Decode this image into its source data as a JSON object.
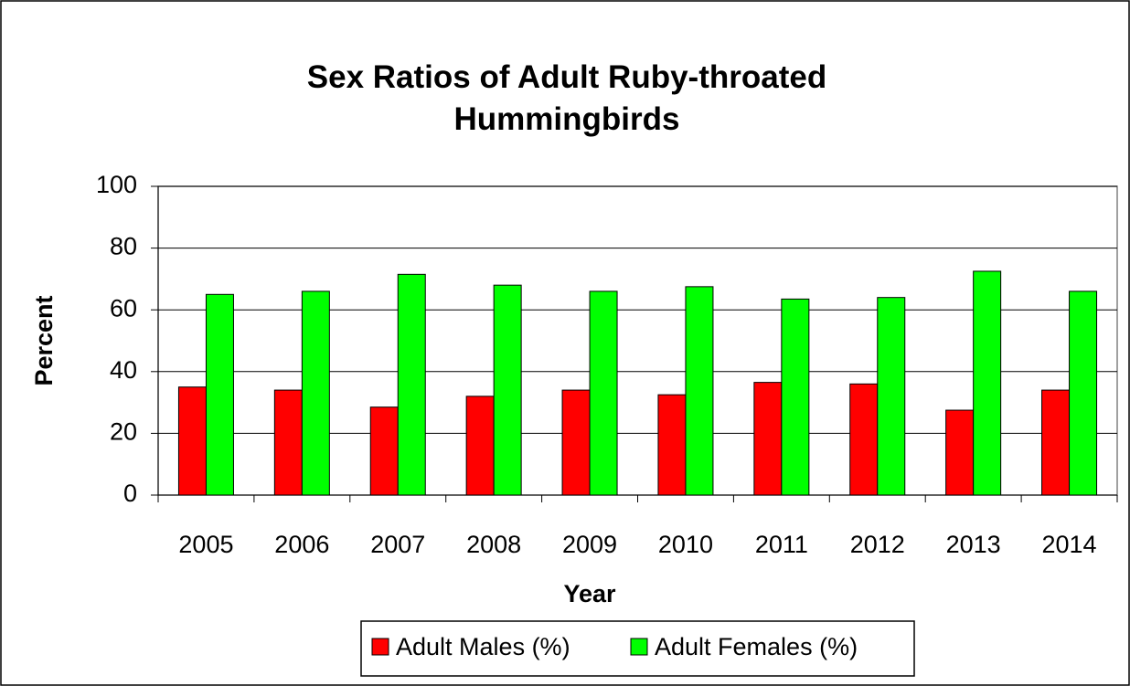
{
  "chart_data": {
    "type": "bar",
    "title": "Sex Ratios of Adult Ruby-throated Hummingbirds",
    "x_label": "Year",
    "y_label": "Percent",
    "categories": [
      "2005",
      "2006",
      "2007",
      "2008",
      "2009",
      "2010",
      "2011",
      "2012",
      "2013",
      "2014"
    ],
    "series": [
      {
        "name": "Adult Males (%)",
        "color": "#ff0000",
        "values": [
          35,
          34,
          28.5,
          32,
          34,
          32.5,
          36.5,
          36,
          27.5,
          34
        ]
      },
      {
        "name": "Adult Females (%)",
        "color": "#00ff00",
        "values": [
          65,
          66,
          71.5,
          68,
          66,
          67.5,
          63.5,
          64,
          72.5,
          66
        ]
      }
    ],
    "ylim": [
      0,
      100
    ],
    "yticks": [
      0,
      20,
      40,
      60,
      80,
      100
    ],
    "grid": true,
    "legend": "bottom"
  }
}
